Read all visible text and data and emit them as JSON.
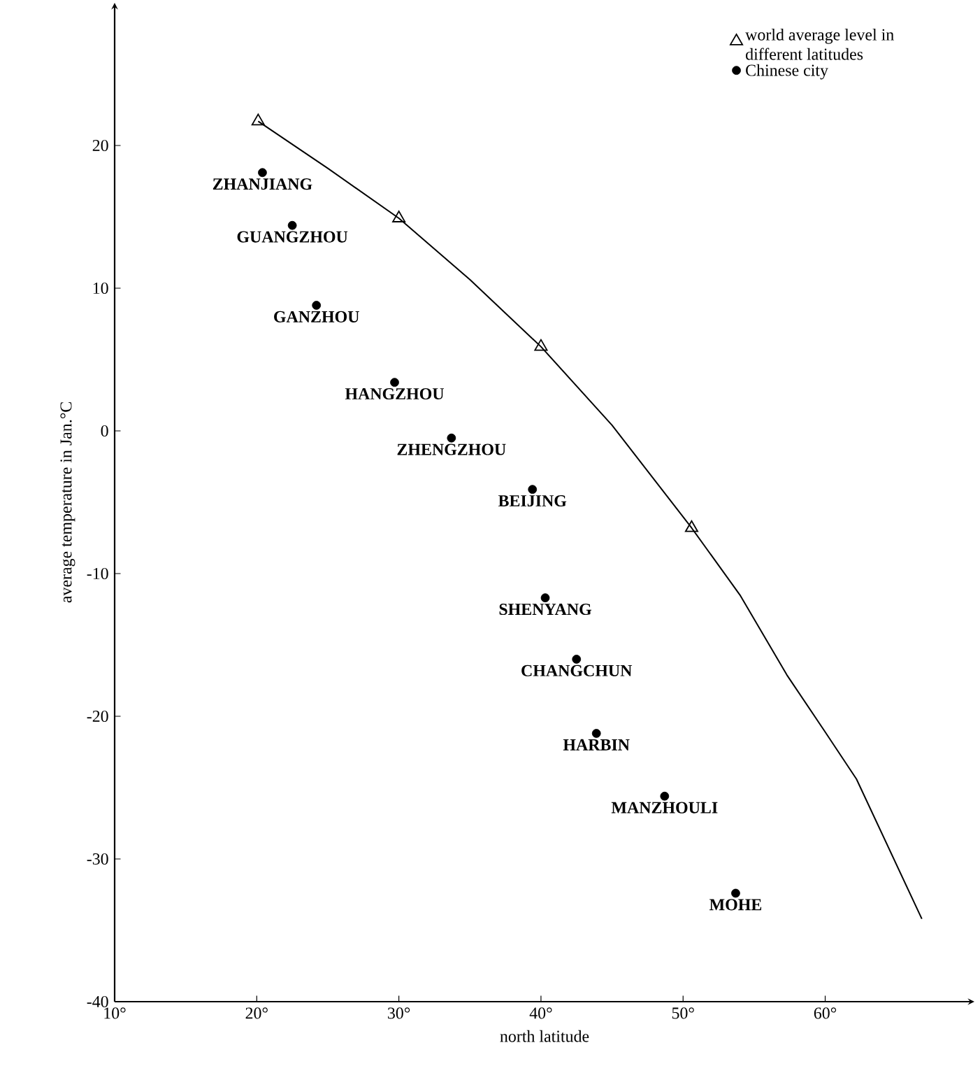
{
  "chart_data": {
    "type": "scatter",
    "xlabel": "north latitude",
    "ylabel": "average temperature in Jan.°C",
    "xlim": [
      10,
      70.5
    ],
    "ylim": [
      -40,
      30
    ],
    "xticks": [
      {
        "value": 10,
        "label": "10°"
      },
      {
        "value": 20,
        "label": "20°"
      },
      {
        "value": 30,
        "label": "30°"
      },
      {
        "value": 40,
        "label": "40°"
      },
      {
        "value": 50,
        "label": "50°"
      },
      {
        "value": 60,
        "label": "60°"
      }
    ],
    "yticks": [
      -40,
      -30,
      -20,
      -10,
      0,
      10,
      20
    ],
    "legend": "top right",
    "series": [
      {
        "name": "world average level in different latitudes",
        "marker": "triangle",
        "color": "#000000",
        "x": [
          20.1,
          30,
          40,
          50.6
        ],
        "values": [
          21.7,
          14.9,
          5.9,
          -6.8
        ]
      },
      {
        "name": "Chinese city",
        "marker": "circle",
        "color": "#000000",
        "x": [
          20.4,
          22.5,
          24.2,
          29.7,
          33.7,
          39.4,
          40.3,
          42.5,
          43.9,
          48.7,
          53.7
        ],
        "values": [
          18.1,
          14.4,
          8.8,
          3.4,
          -0.5,
          -4.1,
          -11.7,
          -16.0,
          -21.2,
          -25.6,
          -32.4
        ]
      },
      {
        "type": "line",
        "marker": "none",
        "line_style": "solid",
        "color": "#000000",
        "x": [
          20.1,
          25,
          30,
          35,
          40,
          45,
          50.6,
          54,
          57.3,
          60,
          62.2,
          66.8
        ],
        "values": [
          21.7,
          18.4,
          14.9,
          10.6,
          5.9,
          0.4,
          -6.8,
          -11.5,
          -17.1,
          -21.1,
          -24.4,
          -34.2
        ]
      }
    ],
    "annotations": [
      {
        "text": "ZHANJIANG",
        "x": 20.4,
        "y": 18.1
      },
      {
        "text": "GUANGZHOU",
        "x": 22.5,
        "y": 14.4
      },
      {
        "text": "GANZHOU",
        "x": 24.2,
        "y": 8.8
      },
      {
        "text": "HANGZHOU",
        "x": 29.7,
        "y": 3.4
      },
      {
        "text": "ZHENGZHOU",
        "x": 33.7,
        "y": -0.5
      },
      {
        "text": "BEIJING",
        "x": 39.4,
        "y": -4.1
      },
      {
        "text": "SHENYANG",
        "x": 40.3,
        "y": -11.7
      },
      {
        "text": "CHANGCHUN",
        "x": 42.5,
        "y": -16.0
      },
      {
        "text": "HARBIN",
        "x": 43.9,
        "y": -21.2
      },
      {
        "text": "MANZHOULI",
        "x": 48.7,
        "y": -25.6
      },
      {
        "text": "MOHE",
        "x": 53.7,
        "y": -32.4
      }
    ]
  }
}
